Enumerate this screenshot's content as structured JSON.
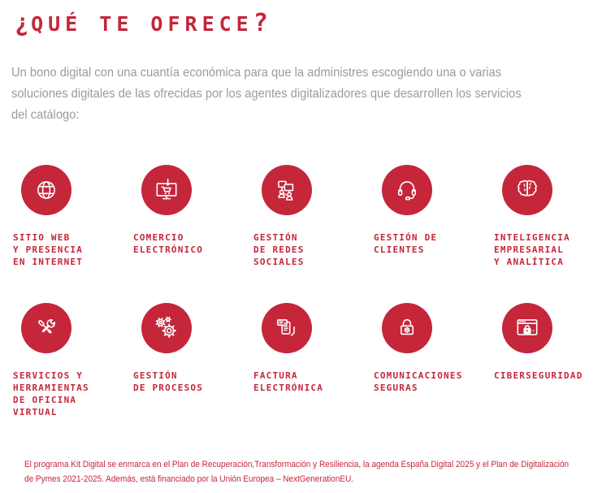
{
  "title": {
    "open_mark": "¿",
    "text": "QUÉ TE OFRECE",
    "close_mark": "?"
  },
  "intro": "Un bono digital con una cuantía económica para que la administres escogiendo una o varias\nsoluciones digitales de las ofrecidas por los agentes digitalizadores que desarrollen los servicios\ndel catálogo:",
  "colors": {
    "brand_red": "#C5263A",
    "body_gray": "#9B9B9B",
    "background": "#FFFFFF",
    "icon_stroke": "#FFFFFF"
  },
  "services": [
    {
      "icon": "globe-network-icon",
      "label": "SITIO WEB\nY PRESENCIA\nEN INTERNET"
    },
    {
      "icon": "ecommerce-cart-icon",
      "label": "COMERCIO\nELECTRÓNICO"
    },
    {
      "icon": "social-networks-icon",
      "label": "GESTIÓN\nDE REDES\nSOCIALES"
    },
    {
      "icon": "headset-icon",
      "label": "GESTIÓN DE\nCLIENTES"
    },
    {
      "icon": "brain-icon",
      "label": "INTELIGENCIA\nEMPRESARIAL\nY ANALÍTICA"
    },
    {
      "icon": "tools-icon",
      "label": "SERVICIOS Y\nHERRAMIENTAS\nDE OFICINA\nVIRTUAL"
    },
    {
      "icon": "gears-icon",
      "label": "GESTIÓN\nDE PROCESOS"
    },
    {
      "icon": "invoice-icon",
      "label": "FACTURA\nELECTRÓNICA"
    },
    {
      "icon": "padlock-icon",
      "label": "COMUNICACIONES\nSEGURAS"
    },
    {
      "icon": "browser-lock-icon",
      "label": "CIBERSEGURIDAD"
    }
  ],
  "footer": "El programa Kit Digital se enmarca en el Plan de Recuperación,Transformación y Resiliencia, la agenda España Digital 2025 y el Plan de Digitalización\nde Pymes 2021-2025. Además, está financiado por la Unión Europea – NextGenerationEU."
}
